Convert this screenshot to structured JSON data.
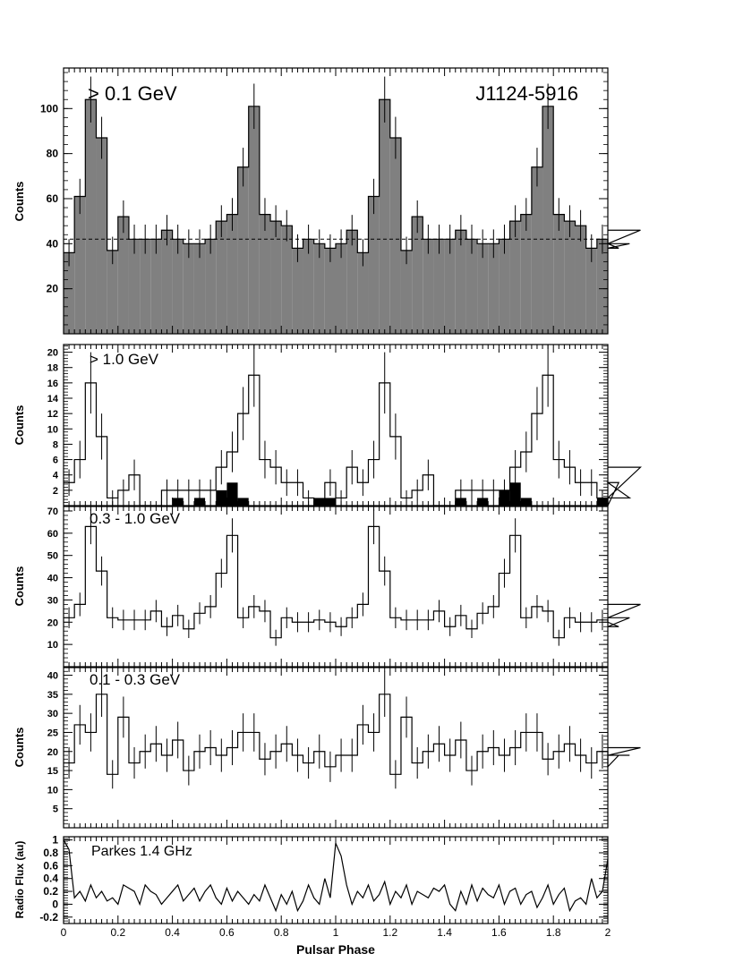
{
  "chart_data": [
    {
      "type": "histogram",
      "panel_label": "> 0.1 GeV",
      "source_label": "J1124-5916",
      "ylabel": "Counts",
      "ylim": [
        0,
        118
      ],
      "yticks": [
        20,
        40,
        60,
        80,
        100
      ],
      "xlim": [
        0,
        2
      ],
      "bin_width": 0.04,
      "fill": "#808080",
      "background_level": 42,
      "values": [
        36,
        61,
        104,
        87,
        37,
        52,
        42,
        42,
        42,
        46,
        42,
        40,
        40,
        42,
        50,
        53,
        74,
        101,
        53,
        50,
        48,
        38,
        42,
        40,
        38,
        40,
        46,
        36,
        61,
        104,
        87,
        37,
        52,
        42,
        42,
        42,
        46,
        42,
        40,
        40,
        42,
        50,
        53,
        74,
        101,
        53,
        50,
        48,
        38,
        42,
        40,
        38,
        40,
        46
      ]
    },
    {
      "type": "histogram",
      "panel_label": "> 1.0 GeV",
      "ylabel": "Counts",
      "ylim": [
        0,
        21
      ],
      "yticks": [
        2,
        4,
        6,
        8,
        10,
        12,
        14,
        16,
        18,
        20
      ],
      "xlim": [
        0,
        2
      ],
      "bin_width": 0.04,
      "values": [
        3,
        6,
        16,
        9,
        1,
        2,
        4,
        0,
        0,
        2,
        2,
        2,
        2,
        2,
        5,
        7,
        12,
        17,
        6,
        5,
        3,
        3,
        1,
        0,
        3,
        1,
        5,
        3,
        6,
        16,
        9,
        1,
        2,
        4,
        0,
        0,
        2,
        2,
        2,
        2,
        2,
        5,
        7,
        12,
        17,
        6,
        5,
        3,
        3,
        1,
        0,
        3,
        1,
        5
      ],
      "filled_values": [
        0,
        0,
        0,
        0,
        0,
        0,
        0,
        0,
        0,
        0,
        1,
        0,
        1,
        0,
        2,
        3,
        1,
        0,
        0,
        0,
        0,
        0,
        0,
        1,
        1,
        0,
        0,
        0,
        0,
        0,
        0,
        0,
        0,
        0,
        0,
        0,
        1,
        0,
        1,
        0,
        2,
        3,
        1,
        0,
        0,
        0,
        0,
        0,
        0,
        1,
        1,
        0,
        0,
        0
      ]
    },
    {
      "type": "histogram",
      "panel_label": "0.3 - 1.0 GeV",
      "ylabel": "Counts",
      "ylim": [
        0,
        72
      ],
      "yticks": [
        10,
        20,
        30,
        40,
        50,
        60,
        70
      ],
      "xlim": [
        0,
        2
      ],
      "bin_width": 0.04,
      "values": [
        22,
        28,
        63,
        43,
        22,
        21,
        21,
        21,
        25,
        18,
        23,
        17,
        24,
        27,
        42,
        59,
        22,
        27,
        25,
        13,
        22,
        20,
        20,
        21,
        20,
        18,
        22,
        28,
        63,
        43,
        22,
        21,
        21,
        21,
        25,
        18,
        23,
        17,
        24,
        27,
        42,
        59,
        22,
        27,
        25,
        13,
        22,
        20,
        20,
        21,
        20,
        18,
        22,
        28
      ]
    },
    {
      "type": "histogram",
      "panel_label": "0.1 - 0.3 GeV",
      "ylabel": "Counts",
      "ylim": [
        0,
        42
      ],
      "yticks": [
        5,
        10,
        15,
        20,
        25,
        30,
        35,
        40
      ],
      "xlim": [
        0,
        2
      ],
      "bin_width": 0.04,
      "values": [
        17,
        27,
        25,
        35,
        14,
        29,
        17,
        20,
        22,
        19,
        23,
        15,
        20,
        21,
        19,
        21,
        25,
        25,
        18,
        20,
        22,
        19,
        17,
        20,
        16,
        19,
        19,
        27,
        25,
        35,
        14,
        29,
        17,
        20,
        22,
        19,
        23,
        15,
        20,
        21,
        19,
        21,
        25,
        25,
        18,
        20,
        22,
        19,
        17,
        20,
        16,
        19,
        19,
        21
      ]
    },
    {
      "type": "line",
      "panel_label": "Parkes 1.4 GHz",
      "ylabel": "Radio Flux (au)",
      "xlabel": "Pulsar Phase",
      "ylim": [
        -0.3,
        1.05
      ],
      "yticks": [
        -0.2,
        0,
        0.2,
        0.4,
        0.6,
        0.8,
        1
      ],
      "ytick_labels": [
        "-0.2",
        "0",
        "0.2",
        "0.4",
        "0.6",
        "0.8",
        "1"
      ],
      "xlim": [
        0,
        2
      ],
      "xticks": [
        0,
        0.2,
        0.4,
        0.6,
        0.8,
        1,
        1.2,
        1.4,
        1.6,
        1.8,
        2
      ],
      "xtick_labels": [
        "0",
        "0.2",
        "0.4",
        "0.6",
        "0.8",
        "1",
        "1.2",
        "1.4",
        "1.6",
        "1.8",
        "2"
      ],
      "x": [
        0,
        0.02,
        0.04,
        0.06,
        0.08,
        0.1,
        0.12,
        0.14,
        0.16,
        0.18,
        0.2,
        0.22,
        0.24,
        0.26,
        0.28,
        0.3,
        0.32,
        0.34,
        0.36,
        0.38,
        0.4,
        0.42,
        0.44,
        0.46,
        0.48,
        0.5,
        0.52,
        0.54,
        0.56,
        0.58,
        0.6,
        0.62,
        0.64,
        0.66,
        0.68,
        0.7,
        0.72,
        0.74,
        0.76,
        0.78,
        0.8,
        0.82,
        0.84,
        0.86,
        0.88,
        0.9,
        0.92,
        0.94,
        0.96,
        0.98,
        1,
        1.02,
        1.04,
        1.06,
        1.08,
        1.1,
        1.12,
        1.14,
        1.16,
        1.18,
        1.2,
        1.22,
        1.24,
        1.26,
        1.28,
        1.3,
        1.32,
        1.34,
        1.36,
        1.38,
        1.4,
        1.42,
        1.44,
        1.46,
        1.48,
        1.5,
        1.52,
        1.54,
        1.56,
        1.58,
        1.6,
        1.62,
        1.64,
        1.66,
        1.68,
        1.7,
        1.72,
        1.74,
        1.76,
        1.78,
        1.8,
        1.82,
        1.84,
        1.86,
        1.88,
        1.9,
        1.92,
        1.94,
        1.96,
        1.98,
        2
      ],
      "y": [
        1,
        0.85,
        0.1,
        0.2,
        0.05,
        0.3,
        0.1,
        0.2,
        0.05,
        0.1,
        0.0,
        0.3,
        0.25,
        0.2,
        0.0,
        0.3,
        0.2,
        0.15,
        0.0,
        0.1,
        0.2,
        0.3,
        0.05,
        0.15,
        0.25,
        0.05,
        0.2,
        0.3,
        0.1,
        0.0,
        0.25,
        0.05,
        0.2,
        0.1,
        0.0,
        0.15,
        0.05,
        0.3,
        0.1,
        -0.1,
        0.15,
        0.0,
        0.2,
        -0.1,
        0.05,
        0.3,
        0.1,
        0.0,
        0.4,
        0.1,
        0.95,
        0.75,
        0.3,
        0.0,
        0.2,
        0.1,
        0.3,
        0.05,
        0.15,
        0.35,
        0.0,
        0.2,
        0.1,
        0.3,
        0.0,
        0.2,
        0.15,
        0.1,
        0.25,
        0.2,
        0.3,
        0.0,
        -0.1,
        0.2,
        0.0,
        0.3,
        0.05,
        0.25,
        0.15,
        0.1,
        0.3,
        0.0,
        0.2,
        0.25,
        0.0,
        0.15,
        0.2,
        -0.05,
        0.1,
        0.3,
        0.0,
        0.15,
        0.25,
        -0.1,
        0.05,
        0.1,
        0.0,
        0.4,
        0.1,
        0.2,
        0.7
      ]
    }
  ]
}
